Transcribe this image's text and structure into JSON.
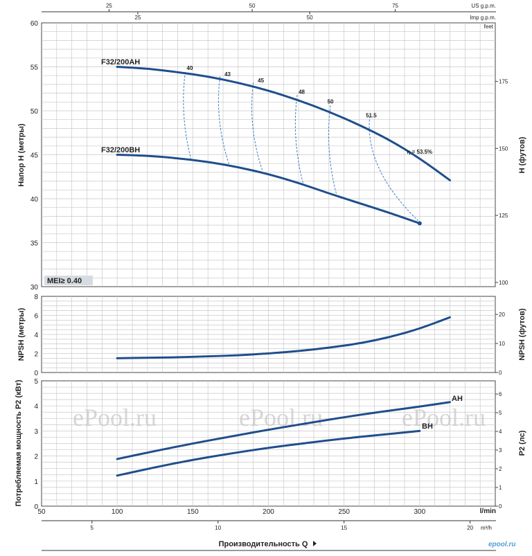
{
  "chart_data": [
    {
      "type": "line",
      "name": "head",
      "ylabel": "Напор H (метры)",
      "y2label": "H (футов)",
      "y2unit": "feet",
      "ylim": [
        30,
        60
      ],
      "yticks": [
        30,
        35,
        40,
        45,
        50,
        55,
        60
      ],
      "y2ticks": [
        100,
        125,
        150,
        175
      ],
      "series": [
        {
          "name": "F32/200AH",
          "x": [
            100,
            120,
            140,
            160,
            180,
            200,
            220,
            240,
            260,
            280,
            300,
            320
          ],
          "y": [
            55,
            54.8,
            54.4,
            53.9,
            53.2,
            52.3,
            51.2,
            49.9,
            48.4,
            46.7,
            44.6,
            42.1
          ]
        },
        {
          "name": "F32/200BH",
          "x": [
            100,
            120,
            140,
            160,
            180,
            200,
            220,
            240,
            260,
            280,
            300
          ],
          "y": [
            45,
            44.9,
            44.6,
            44.2,
            43.6,
            42.8,
            41.8,
            40.6,
            39.5,
            38.4,
            37.2
          ]
        }
      ],
      "efficiency_labels": [
        {
          "label": "40",
          "x": 148,
          "y": 54.4
        },
        {
          "label": "43",
          "x": 173,
          "y": 53.7
        },
        {
          "label": "45",
          "x": 195,
          "y": 53.0
        },
        {
          "label": "48",
          "x": 222,
          "y": 51.7
        },
        {
          "label": "50",
          "x": 241,
          "y": 50.6
        },
        {
          "label": "51.5",
          "x": 268,
          "y": 49.0
        },
        {
          "label": "η = 53.5%",
          "x": 300,
          "y": 44.9
        }
      ],
      "iso_efficiency_lines": [
        {
          "label": "40",
          "top": [
            145,
            54.4
          ],
          "bottom": [
            149,
            44.4
          ]
        },
        {
          "label": "43",
          "top": [
            168,
            53.9
          ],
          "bottom": [
            174,
            43.9
          ]
        },
        {
          "label": "45",
          "top": [
            190,
            53.2
          ],
          "bottom": [
            196,
            43.2
          ]
        },
        {
          "label": "48",
          "top": [
            219,
            51.8
          ],
          "bottom": [
            223,
            41.7
          ]
        },
        {
          "label": "50",
          "top": [
            241,
            50.6
          ],
          "bottom": [
            245,
            40.5
          ]
        },
        {
          "label": "51.5",
          "top": [
            267,
            49.4
          ],
          "bottom": [
            299,
            37.5
          ]
        }
      ],
      "mei_label": "MEI≥ 0.40"
    },
    {
      "type": "line",
      "name": "npsh",
      "ylabel": "NPSH (метры)",
      "y2label": "NPSH (футов)",
      "ylim": [
        0,
        8
      ],
      "yticks": [
        0,
        2,
        4,
        6,
        8
      ],
      "y2ticks": [
        0,
        10,
        20
      ],
      "series": [
        {
          "name": "NPSH",
          "x": [
            100,
            120,
            140,
            160,
            180,
            200,
            220,
            240,
            260,
            280,
            300,
            320
          ],
          "y": [
            1.5,
            1.55,
            1.6,
            1.7,
            1.8,
            2.0,
            2.25,
            2.6,
            3.05,
            3.7,
            4.6,
            5.8
          ]
        }
      ]
    },
    {
      "type": "line",
      "name": "power",
      "ylabel": "Потребляемая мощность P2 (кВт)",
      "y2label": "P2 (лс)",
      "ylim": [
        0,
        5
      ],
      "yticks": [
        0,
        1,
        2,
        3,
        4,
        5
      ],
      "y2ticks": [
        0,
        1,
        2,
        3,
        4,
        5,
        6
      ],
      "series": [
        {
          "name": "AH",
          "x": [
            100,
            125,
            150,
            175,
            200,
            225,
            250,
            275,
            300,
            320
          ],
          "y": [
            1.88,
            2.2,
            2.5,
            2.78,
            3.05,
            3.3,
            3.55,
            3.77,
            3.97,
            4.15
          ]
        },
        {
          "name": "BH",
          "x": [
            100,
            125,
            150,
            175,
            200,
            225,
            250,
            275,
            300
          ],
          "y": [
            1.22,
            1.55,
            1.85,
            2.1,
            2.33,
            2.52,
            2.7,
            2.85,
            3.0
          ]
        }
      ]
    }
  ],
  "x_axis": {
    "label": "Производительность Q",
    "unit_main": "l/min",
    "main_ticks": [
      50,
      100,
      150,
      200,
      250,
      300
    ],
    "unit_m3h": "m³/h",
    "m3h_ticks": [
      5,
      10,
      15,
      20
    ],
    "unit_us": "US g.p.m.",
    "us_ticks": [
      25,
      50,
      75
    ],
    "unit_imp": "Imp g.p.m.",
    "imp_ticks": [
      25,
      50
    ]
  },
  "watermark": "ePool.ru",
  "logo": "epool.ru",
  "colors": {
    "curve": "#1f4e8c",
    "grid": "#c8c8c8",
    "mei_bg": "#d7dce3"
  }
}
